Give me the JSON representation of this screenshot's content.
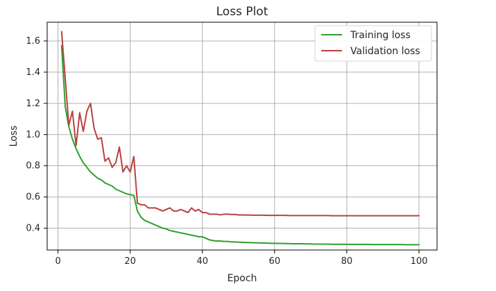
{
  "chart_data": {
    "type": "line",
    "title": "Loss Plot",
    "xlabel": "Epoch",
    "ylabel": "Loss",
    "xlim": [
      -3,
      105
    ],
    "ylim": [
      0.26,
      1.72
    ],
    "xticks": [
      0,
      20,
      40,
      60,
      80,
      100
    ],
    "yticks": [
      0.4,
      0.6,
      0.8,
      1.0,
      1.2,
      1.4,
      1.6
    ],
    "ytick_labels": [
      "0.4",
      "0.6",
      "0.8",
      "1.0",
      "1.2",
      "1.4",
      "1.6"
    ],
    "grid": true,
    "legend_position": "top-right",
    "series": [
      {
        "name": "Training loss",
        "color": "#2ca02c",
        "x": [
          1,
          2,
          3,
          4,
          5,
          6,
          7,
          8,
          9,
          10,
          11,
          12,
          13,
          14,
          15,
          16,
          17,
          18,
          19,
          20,
          21,
          22,
          23,
          24,
          25,
          26,
          27,
          28,
          29,
          30,
          31,
          32,
          33,
          34,
          35,
          36,
          37,
          38,
          39,
          40,
          41,
          42,
          43,
          44,
          45,
          46,
          47,
          48,
          49,
          50,
          51,
          52,
          53,
          54,
          55,
          56,
          57,
          58,
          59,
          60,
          61,
          62,
          63,
          64,
          65,
          66,
          67,
          68,
          69,
          70,
          71,
          72,
          73,
          74,
          75,
          76,
          77,
          78,
          79,
          80,
          81,
          82,
          83,
          84,
          85,
          86,
          87,
          88,
          89,
          90,
          91,
          92,
          93,
          94,
          95,
          96,
          97,
          98,
          99,
          100
        ],
        "y": [
          1.57,
          1.18,
          1.05,
          0.97,
          0.91,
          0.86,
          0.82,
          0.79,
          0.76,
          0.74,
          0.72,
          0.71,
          0.69,
          0.68,
          0.67,
          0.65,
          0.64,
          0.63,
          0.62,
          0.615,
          0.61,
          0.51,
          0.47,
          0.45,
          0.44,
          0.43,
          0.42,
          0.41,
          0.4,
          0.395,
          0.385,
          0.38,
          0.375,
          0.37,
          0.365,
          0.36,
          0.355,
          0.35,
          0.345,
          0.345,
          0.335,
          0.325,
          0.32,
          0.318,
          0.318,
          0.315,
          0.315,
          0.312,
          0.312,
          0.31,
          0.31,
          0.308,
          0.308,
          0.307,
          0.306,
          0.305,
          0.305,
          0.304,
          0.303,
          0.303,
          0.302,
          0.302,
          0.301,
          0.301,
          0.3,
          0.3,
          0.3,
          0.3,
          0.299,
          0.299,
          0.298,
          0.298,
          0.298,
          0.298,
          0.298,
          0.297,
          0.297,
          0.297,
          0.297,
          0.297,
          0.296,
          0.296,
          0.296,
          0.296,
          0.296,
          0.296,
          0.295,
          0.295,
          0.295,
          0.295,
          0.295,
          0.295,
          0.295,
          0.295,
          0.295,
          0.294,
          0.294,
          0.294,
          0.294,
          0.294
        ]
      },
      {
        "name": "Validation loss",
        "color": "#b5433f",
        "x": [
          1,
          2,
          3,
          4,
          5,
          6,
          7,
          8,
          9,
          10,
          11,
          12,
          13,
          14,
          15,
          16,
          17,
          18,
          19,
          20,
          21,
          22,
          23,
          24,
          25,
          26,
          27,
          28,
          29,
          30,
          31,
          32,
          33,
          34,
          35,
          36,
          37,
          38,
          39,
          40,
          41,
          42,
          43,
          44,
          45,
          46,
          47,
          48,
          49,
          50,
          51,
          52,
          53,
          54,
          55,
          56,
          57,
          58,
          59,
          60,
          61,
          62,
          63,
          64,
          65,
          66,
          67,
          68,
          69,
          70,
          71,
          72,
          73,
          74,
          75,
          76,
          77,
          78,
          79,
          80,
          81,
          82,
          83,
          84,
          85,
          86,
          87,
          88,
          89,
          90,
          91,
          92,
          93,
          94,
          95,
          96,
          97,
          98,
          99,
          100
        ],
        "y": [
          1.66,
          1.36,
          1.06,
          1.15,
          0.93,
          1.14,
          1.02,
          1.15,
          1.2,
          1.04,
          0.97,
          0.98,
          0.83,
          0.85,
          0.79,
          0.82,
          0.92,
          0.76,
          0.8,
          0.76,
          0.86,
          0.56,
          0.55,
          0.55,
          0.53,
          0.53,
          0.53,
          0.52,
          0.51,
          0.52,
          0.53,
          0.51,
          0.51,
          0.52,
          0.51,
          0.5,
          0.53,
          0.51,
          0.52,
          0.5,
          0.5,
          0.49,
          0.49,
          0.49,
          0.485,
          0.49,
          0.49,
          0.488,
          0.488,
          0.485,
          0.485,
          0.484,
          0.484,
          0.483,
          0.483,
          0.483,
          0.483,
          0.482,
          0.482,
          0.482,
          0.482,
          0.482,
          0.482,
          0.481,
          0.481,
          0.481,
          0.481,
          0.481,
          0.481,
          0.481,
          0.481,
          0.481,
          0.481,
          0.481,
          0.481,
          0.48,
          0.48,
          0.48,
          0.48,
          0.48,
          0.48,
          0.48,
          0.48,
          0.48,
          0.48,
          0.48,
          0.48,
          0.48,
          0.48,
          0.48,
          0.48,
          0.48,
          0.48,
          0.48,
          0.48,
          0.48,
          0.48,
          0.48,
          0.48,
          0.48
        ]
      }
    ]
  }
}
